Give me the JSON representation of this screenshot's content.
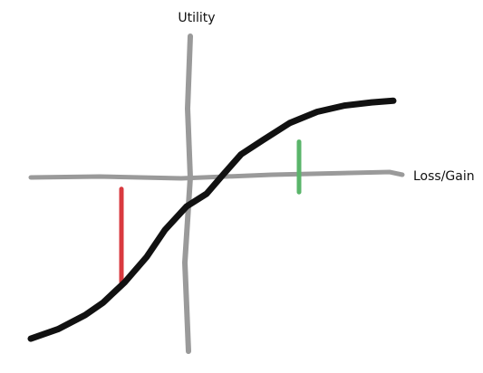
{
  "chart_data": {
    "type": "line",
    "ylabel": "Utility",
    "xlabel": "Loss/Gain",
    "xlim": [
      -10,
      10
    ],
    "ylim": [
      -10,
      10
    ],
    "grid": false,
    "legend": "none",
    "series": [
      {
        "values": [
          [
            -10,
            -9.2
          ],
          [
            -8.5,
            -8.6
          ],
          [
            -7,
            -7.7
          ],
          [
            -6,
            -6.9
          ],
          [
            -4.8,
            -5.6
          ],
          [
            -3.6,
            -4.0
          ],
          [
            -2.6,
            -2.3
          ],
          [
            -1.4,
            -0.8
          ],
          [
            -0.3,
            0
          ],
          [
            0.6,
            1.2
          ],
          [
            1.6,
            2.5
          ],
          [
            2.8,
            3.4
          ],
          [
            4.3,
            4.5
          ],
          [
            5.8,
            5.2
          ],
          [
            7.3,
            5.6
          ],
          [
            8.8,
            5.8
          ],
          [
            10,
            5.9
          ]
        ]
      }
    ],
    "markers": [
      {
        "x": -5.0,
        "y_from": -5.6,
        "y_to": 0.3,
        "color": "#d93a3f"
      },
      {
        "x": 4.8,
        "y_from": 0.1,
        "y_to": 3.3,
        "color": "#5ab56a"
      }
    ],
    "colors": {
      "axes": "#9a9a9a",
      "curve": "#111111"
    }
  }
}
